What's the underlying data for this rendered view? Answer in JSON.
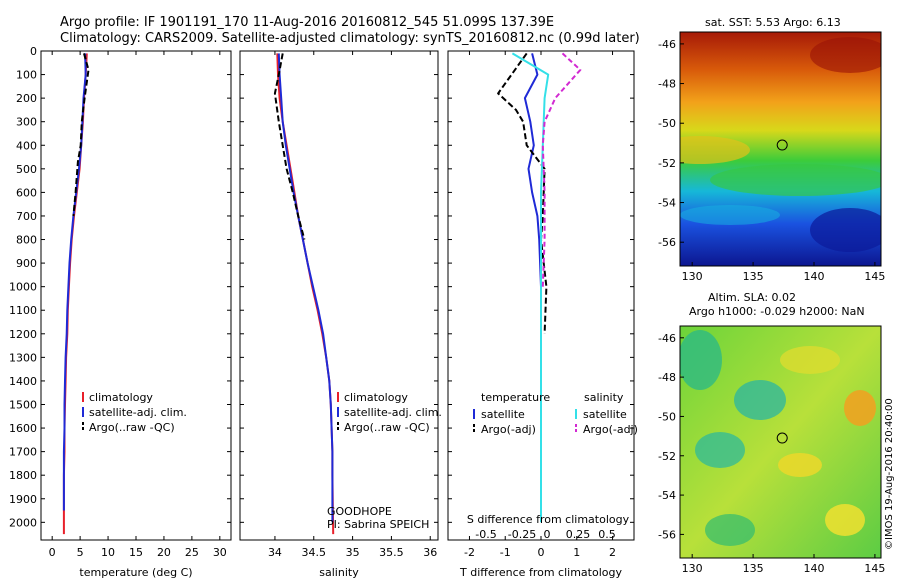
{
  "header": {
    "line1": "Argo profile: IF 1901191_170 11-Aug-2016 20160812_545 51.099S 137.39E",
    "line2": "Climatology: CARS2009. Satellite-adjusted climatology: synTS_20160812.nc (0.99d later)"
  },
  "colors": {
    "climatology": "#e8202a",
    "satellite": "#1f2ad6",
    "argo": "#000000",
    "salinity_sat": "#34e0e8",
    "salinity_argo": "#d22ad2"
  },
  "chart_data": [
    {
      "type": "line",
      "name": "temperature-profile",
      "xlabel": "temperature (deg C)",
      "ylabel": "",
      "xlim": [
        -2,
        32
      ],
      "ylim": [
        2075,
        0
      ],
      "xticks": [
        0,
        5,
        10,
        15,
        20,
        25,
        30
      ],
      "yticks": [
        0,
        100,
        200,
        300,
        400,
        500,
        600,
        700,
        800,
        900,
        1000,
        1100,
        1200,
        1300,
        1400,
        1500,
        1600,
        1700,
        1800,
        1900,
        2000
      ],
      "legend": [
        "climatology",
        "satellite-adj. clim.",
        "Argo(..raw -QC)"
      ],
      "legend_position": "lower-center",
      "series": [
        {
          "name": "climatology",
          "x": [
            6.2,
            6.0,
            5.7,
            5.5,
            5.2,
            4.9,
            4.4,
            3.9,
            3.5,
            3.2,
            3.0,
            2.8,
            2.7,
            2.5,
            2.4,
            2.3,
            2.2,
            2.2,
            2.1,
            2.1,
            2.1
          ],
          "y": [
            10,
            100,
            200,
            300,
            400,
            500,
            600,
            700,
            800,
            900,
            1000,
            1100,
            1200,
            1300,
            1400,
            1500,
            1600,
            1700,
            1800,
            1950,
            2050
          ]
        },
        {
          "name": "satellite-adj. clim.",
          "x": [
            5.9,
            6.0,
            5.6,
            5.4,
            5.2,
            4.8,
            4.3,
            3.8,
            3.4,
            3.1,
            2.9,
            2.7,
            2.6,
            2.4,
            2.3,
            2.2,
            2.2,
            2.1,
            2.1,
            2.1
          ],
          "y": [
            10,
            100,
            200,
            300,
            400,
            500,
            600,
            700,
            800,
            900,
            1000,
            1100,
            1200,
            1300,
            1400,
            1500,
            1600,
            1700,
            1800,
            1950
          ]
        },
        {
          "name": "Argo(..raw -QC)",
          "x": [
            5.7,
            6.5,
            5.8,
            5.3,
            5.1,
            4.6,
            4.2,
            3.8
          ],
          "y": [
            10,
            80,
            200,
            300,
            400,
            470,
            600,
            700
          ]
        }
      ]
    },
    {
      "type": "line",
      "name": "salinity-profile",
      "xlabel": "salinity",
      "ylabel": "",
      "xlim": [
        33.55,
        36.1
      ],
      "ylim": [
        2075,
        0
      ],
      "xticks": [
        34,
        34.5,
        35,
        35.5,
        36
      ],
      "legend": [
        "climatology",
        "satellite-adj. clim.",
        "Argo(..raw -QC)"
      ],
      "legend_position": "lower-center",
      "annotation": [
        "GOODHOPE",
        "PI: Sabrina SPEICH"
      ],
      "series": [
        {
          "name": "climatology",
          "x": [
            34.03,
            34.04,
            34.06,
            34.1,
            34.15,
            34.2,
            34.25,
            34.3,
            34.36,
            34.42,
            34.48,
            34.55,
            34.61,
            34.66,
            34.7,
            34.72,
            34.73,
            34.74,
            34.74,
            34.75
          ],
          "y": [
            10,
            100,
            200,
            300,
            400,
            500,
            600,
            700,
            800,
            900,
            1000,
            1100,
            1200,
            1300,
            1400,
            1500,
            1600,
            1700,
            1800,
            2050
          ]
        },
        {
          "name": "satellite-adj. clim.",
          "x": [
            34.05,
            34.06,
            34.08,
            34.1,
            34.14,
            34.19,
            34.24,
            34.3,
            34.36,
            34.42,
            34.49,
            34.56,
            34.62,
            34.66,
            34.7,
            34.72,
            34.73,
            34.74,
            34.74,
            34.74
          ],
          "y": [
            10,
            100,
            200,
            300,
            400,
            500,
            600,
            700,
            800,
            900,
            1000,
            1100,
            1200,
            1300,
            1400,
            1500,
            1600,
            1700,
            1800,
            2000
          ]
        },
        {
          "name": "Argo(..raw -QC)",
          "x": [
            34.1,
            34.05,
            34.0,
            34.05,
            34.1,
            34.15,
            34.23,
            34.3,
            34.38
          ],
          "y": [
            10,
            100,
            180,
            300,
            400,
            500,
            600,
            700,
            800
          ]
        }
      ]
    },
    {
      "type": "line",
      "name": "difference-profile",
      "xlabel": "T difference from climatology",
      "xlabel_top": "S difference from climatology",
      "xlim": [
        -2.6,
        2.6
      ],
      "ylim": [
        2075,
        0
      ],
      "xticks": [
        -2,
        -1,
        0,
        1,
        2
      ],
      "s_ticks": [
        "-0.5",
        "-0.25",
        "0",
        "0.25",
        "0.5"
      ],
      "legend": {
        "temperature_title": "temperature",
        "salinity_title": "salinity",
        "temperature_items": [
          "satellite",
          "Argo(-adj)"
        ],
        "salinity_items": [
          "satellite",
          "Argo(-adj)"
        ]
      },
      "legend_position": "lower-center",
      "series": [
        {
          "name": "temperature satellite",
          "x": [
            -0.25,
            -0.1,
            -0.45,
            -0.3,
            -0.2,
            -0.35,
            -0.25,
            -0.1,
            -0.05,
            0,
            0,
            0
          ],
          "y": [
            10,
            100,
            200,
            300,
            400,
            500,
            600,
            700,
            800,
            1000,
            1100,
            1180
          ]
        },
        {
          "name": "temperature Argo(-adj)",
          "x": [
            -0.4,
            -1.2,
            -0.7,
            -0.5,
            -0.4,
            0.1,
            0.05,
            0,
            0.15,
            0.1
          ],
          "y": [
            10,
            180,
            250,
            300,
            400,
            500,
            700,
            800,
            1000,
            1200
          ]
        },
        {
          "name": "salinity satellite",
          "x": [
            -0.8,
            0.2,
            0.1,
            0.05,
            0,
            0,
            0,
            0
          ],
          "y": [
            10,
            100,
            200,
            400,
            600,
            1000,
            1500,
            2000
          ]
        },
        {
          "name": "salinity Argo(-adj)",
          "x": [
            0.6,
            1.1,
            0.4,
            0.1,
            0.05,
            0.1,
            0.1,
            0.05
          ],
          "y": [
            10,
            80,
            200,
            300,
            400,
            600,
            800,
            1000
          ]
        }
      ]
    },
    {
      "type": "heatmap",
      "name": "sst-map",
      "title": "sat. SST: 5.53 Argo: 6.13",
      "xticks": [
        "130",
        "135",
        "140",
        "145"
      ],
      "yticks": [
        "-46",
        "-48",
        "-50",
        "-52",
        "-54",
        "-56"
      ],
      "xlim": [
        129,
        145.5
      ],
      "ylim": [
        -57.2,
        -45.4
      ],
      "marker": {
        "lon": 137.39,
        "lat": -51.099
      }
    },
    {
      "type": "heatmap",
      "name": "sla-map",
      "title_line1": "Altim. SLA: 0.02",
      "title_line2": "Argo h1000: -0.029 h2000: NaN",
      "xticks": [
        "130",
        "135",
        "140",
        "145"
      ],
      "yticks": [
        "-46",
        "-48",
        "-50",
        "-52",
        "-54",
        "-56"
      ],
      "xlim": [
        129,
        145.5
      ],
      "ylim": [
        -57.2,
        -45.4
      ],
      "marker": {
        "lon": 137.39,
        "lat": -51.099
      },
      "credit": "©IMOS 19-Aug-2016 20:40:00"
    }
  ]
}
